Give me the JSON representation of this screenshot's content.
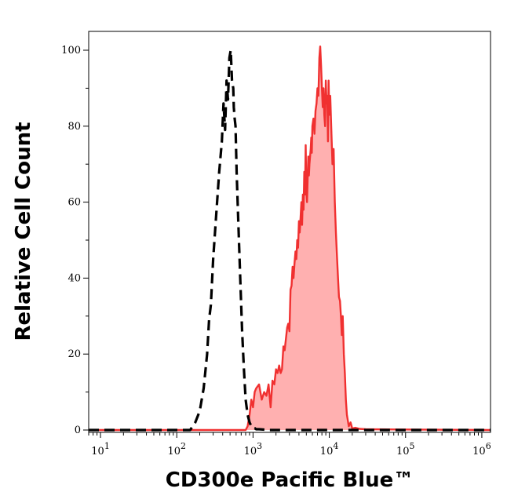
{
  "chart_data": {
    "type": "area",
    "xlabel": "CD300e Pacific Blue™",
    "ylabel": "Relative Cell Count",
    "x_scale": "log",
    "xlim": [
      7,
      1300000
    ],
    "ylim": [
      0,
      100
    ],
    "x_ticks": [
      {
        "value": 10,
        "base": "10",
        "exp": "1"
      },
      {
        "value": 100,
        "base": "10",
        "exp": "2"
      },
      {
        "value": 1000,
        "base": "10",
        "exp": "3"
      },
      {
        "value": 10000,
        "base": "10",
        "exp": "4"
      },
      {
        "value": 100000,
        "base": "10",
        "exp": "5"
      },
      {
        "value": 1000000,
        "base": "10",
        "exp": "6"
      }
    ],
    "y_ticks": [
      0,
      20,
      40,
      60,
      80,
      100
    ],
    "grid": false,
    "series": [
      {
        "style": "dashed",
        "color": "#000000",
        "fill": "none",
        "x": [
          7,
          150,
          175,
          200,
          225,
          250,
          265,
          280,
          300,
          330,
          360,
          390,
          410,
          430,
          450,
          470,
          490,
          510,
          530,
          550,
          560,
          575,
          590,
          610,
          640,
          680,
          720,
          760,
          800,
          850,
          900,
          950,
          1000,
          1050,
          1100,
          1200,
          1400,
          1600,
          1300000
        ],
        "y": [
          0,
          0,
          2,
          5,
          11,
          20,
          29,
          33,
          45,
          57,
          68,
          76,
          86,
          79,
          92,
          87,
          98,
          100,
          92,
          90,
          85,
          82,
          80,
          68,
          55,
          40,
          26,
          16,
          8,
          4,
          2,
          1,
          0.5,
          0.5,
          0.2,
          0.2,
          0.1,
          0,
          0
        ]
      },
      {
        "style": "solid",
        "color": "#f03030",
        "fill": "#ffb0b0",
        "x": [
          7,
          800,
          850,
          900,
          950,
          1000,
          1050,
          1100,
          1200,
          1300,
          1400,
          1500,
          1600,
          1700,
          1800,
          1900,
          2000,
          2100,
          2200,
          2300,
          2400,
          2500,
          2600,
          2700,
          2800,
          2900,
          3000,
          3100,
          3200,
          3300,
          3400,
          3500,
          3600,
          3700,
          3800,
          3900,
          4000,
          4100,
          4200,
          4300,
          4400,
          4500,
          4600,
          4700,
          4800,
          4900,
          5000,
          5100,
          5200,
          5300,
          5400,
          5500,
          5600,
          5700,
          5800,
          5900,
          6000,
          6200,
          6400,
          6600,
          6800,
          7000,
          7200,
          7400,
          7600,
          7800,
          8000,
          8200,
          8400,
          8600,
          8800,
          9000,
          9200,
          9400,
          9600,
          9800,
          10000,
          10300,
          10600,
          11000,
          11400,
          11800,
          12200,
          12600,
          13000,
          13400,
          13800,
          14200,
          14600,
          15000,
          15500,
          16000,
          16500,
          17000,
          18000,
          19000,
          20000,
          22000,
          25000,
          30000,
          1300000
        ],
        "y": [
          0,
          0,
          1,
          4,
          8,
          6,
          10,
          11,
          12,
          8,
          10,
          9,
          12,
          6,
          13,
          12,
          16,
          15,
          17,
          15,
          16,
          22,
          21,
          24,
          27,
          28,
          26,
          37,
          38,
          43,
          40,
          44,
          47,
          45,
          50,
          48,
          55,
          52,
          56,
          60,
          54,
          62,
          58,
          68,
          62,
          75,
          63,
          60,
          66,
          72,
          67,
          70,
          72,
          74,
          77,
          73,
          80,
          82,
          78,
          84,
          86,
          90,
          88,
          98,
          101,
          96,
          90,
          85,
          90,
          83,
          80,
          92,
          86,
          88,
          76,
          92,
          83,
          88,
          80,
          70,
          74,
          60,
          52,
          46,
          40,
          35,
          34,
          30,
          25,
          30,
          20,
          15,
          8,
          4,
          1,
          2,
          0.4,
          0.6,
          0.3,
          0.2,
          0
        ]
      }
    ]
  }
}
